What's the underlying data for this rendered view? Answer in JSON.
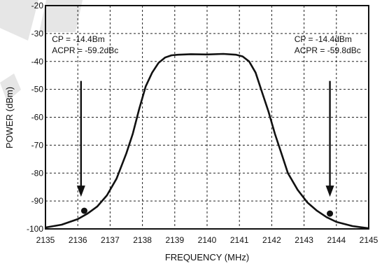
{
  "chart_data": {
    "type": "line",
    "xlabel": "FREQUENCY (MHz)",
    "ylabel": "POWER (dBm)",
    "xlim": [
      2135,
      2145
    ],
    "ylim": [
      -100,
      -20
    ],
    "x_ticks": [
      2135,
      2136,
      2137,
      2138,
      2139,
      2140,
      2141,
      2142,
      2143,
      2144,
      2145
    ],
    "y_ticks": [
      -20,
      -30,
      -40,
      -50,
      -60,
      -70,
      -80,
      -90,
      -100
    ],
    "grid": true,
    "series": [
      {
        "x": [
          2135.0,
          2135.5,
          2136.0,
          2136.3,
          2136.6,
          2136.9,
          2137.2,
          2137.5,
          2137.7,
          2137.9,
          2138.1,
          2138.3,
          2138.5,
          2138.7,
          2138.9,
          2139.1,
          2139.5,
          2140.0,
          2140.5,
          2140.9,
          2141.1,
          2141.3,
          2141.5,
          2141.7,
          2141.9,
          2142.1,
          2142.3,
          2142.5,
          2142.8,
          2143.1,
          2143.4,
          2143.7,
          2144.0,
          2144.5,
          2145.0
        ],
        "y": [
          -99.5,
          -98.5,
          -96.5,
          -94.5,
          -92.0,
          -88.0,
          -82.0,
          -73.0,
          -66.0,
          -57.0,
          -49.0,
          -44.0,
          -40.5,
          -38.6,
          -37.8,
          -37.6,
          -37.4,
          -37.5,
          -37.3,
          -37.6,
          -38.2,
          -40.0,
          -44.0,
          -51.0,
          -58.0,
          -66.0,
          -73.0,
          -80.0,
          -86.0,
          -90.5,
          -93.5,
          -95.8,
          -97.5,
          -99.0,
          -99.8
        ]
      }
    ],
    "markers": [
      {
        "x": 2136.2,
        "y": -93.5
      },
      {
        "x": 2143.8,
        "y": -94.5
      }
    ],
    "arrows": [
      {
        "x": 2136.1,
        "y_from": -47,
        "y_to": -88
      },
      {
        "x": 2143.8,
        "y_from": -47,
        "y_to": -88
      }
    ],
    "annotations": [
      {
        "lines": [
          "CP = -14.4Bm",
          "ACPR = -59.2dBc"
        ],
        "x": 2135.2,
        "y": -33
      },
      {
        "lines": [
          "CP = -14.4dBm",
          "ACPR = -59.8dBc"
        ],
        "x": 2142.7,
        "y": -33
      }
    ]
  }
}
